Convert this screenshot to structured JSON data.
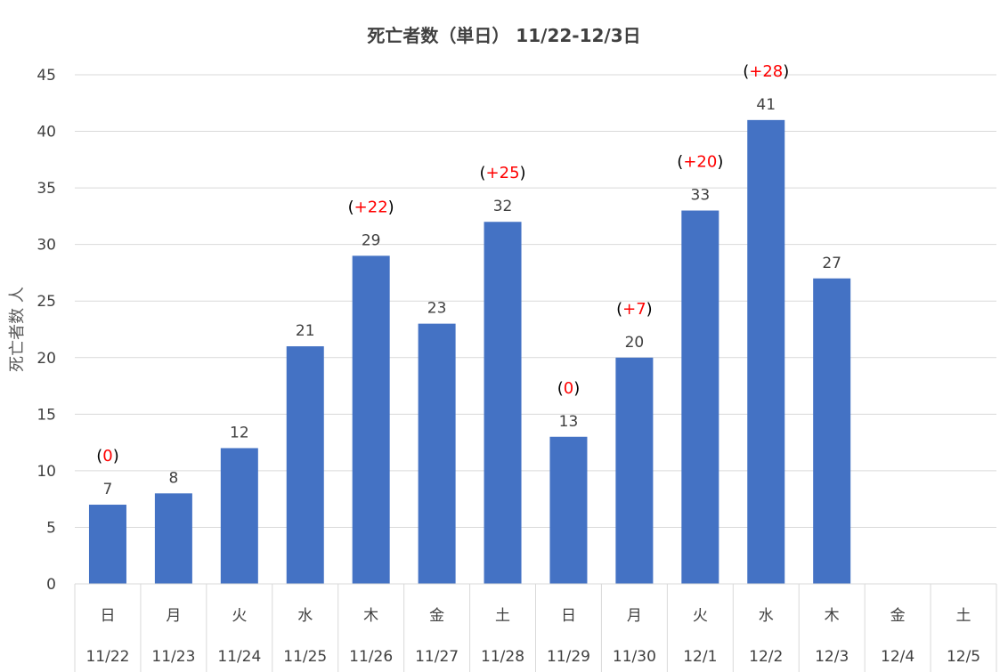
{
  "chart_data": {
    "type": "bar",
    "title": "死亡者数（単日） 11/22-12/3日",
    "ylabel": "死亡者数 人",
    "ylim": [
      0,
      45
    ],
    "yticks": [
      0,
      5,
      10,
      15,
      20,
      25,
      30,
      35,
      40,
      45
    ],
    "grid": true,
    "bar_color": "#4472C4",
    "delta_color": "#FF0000",
    "categories": [
      {
        "day": "日",
        "date": "11/22"
      },
      {
        "day": "月",
        "date": "11/23"
      },
      {
        "day": "火",
        "date": "11/24"
      },
      {
        "day": "水",
        "date": "11/25"
      },
      {
        "day": "木",
        "date": "11/26"
      },
      {
        "day": "金",
        "date": "11/27"
      },
      {
        "day": "土",
        "date": "11/28"
      },
      {
        "day": "日",
        "date": "11/29"
      },
      {
        "day": "月",
        "date": "11/30"
      },
      {
        "day": "火",
        "date": "12/1"
      },
      {
        "day": "水",
        "date": "12/2"
      },
      {
        "day": "木",
        "date": "12/3"
      },
      {
        "day": "金",
        "date": "12/4"
      },
      {
        "day": "土",
        "date": "12/5"
      }
    ],
    "values": [
      7,
      8,
      12,
      21,
      29,
      23,
      32,
      13,
      20,
      33,
      41,
      27,
      null,
      null
    ],
    "weekly_change": [
      "0",
      null,
      null,
      null,
      "+22",
      null,
      "+25",
      "0",
      "+7",
      "+20",
      "+28",
      null,
      null,
      null
    ]
  }
}
